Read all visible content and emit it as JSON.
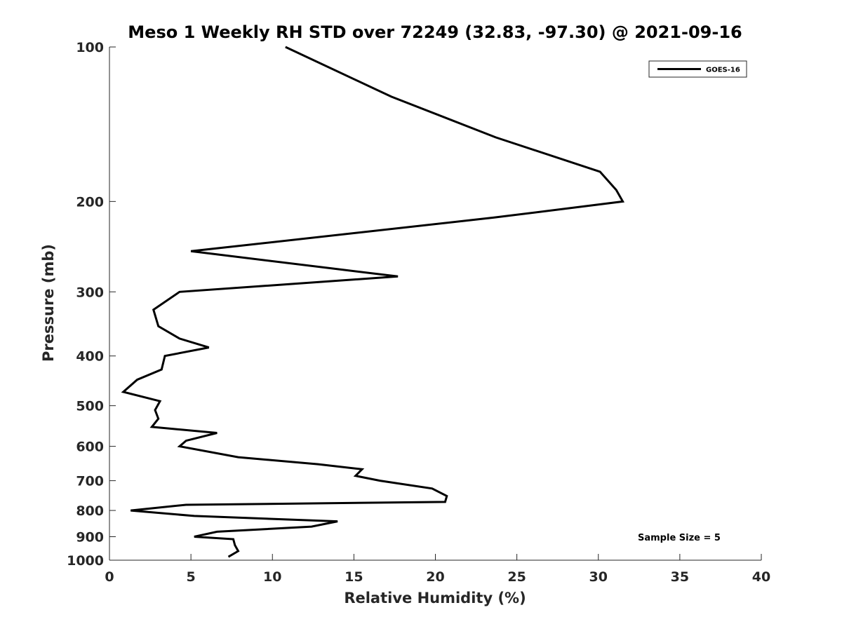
{
  "chart_data": {
    "type": "line",
    "title": "Meso 1 Weekly RH STD over 72249 (32.83, -97.30) @ 2021-09-16",
    "xlabel": "Relative Humidity (%)",
    "ylabel": "Pressure (mb)",
    "xlim": [
      0,
      40
    ],
    "ylim": [
      100,
      1000
    ],
    "y_scale": "log",
    "y_reversed": true,
    "grid": false,
    "x_ticks": [
      0,
      5,
      10,
      15,
      20,
      25,
      30,
      35,
      40
    ],
    "y_ticks": [
      100,
      200,
      300,
      400,
      500,
      600,
      700,
      800,
      900,
      1000
    ],
    "legend_position": "top-right",
    "annotation": "Sample Size = 5",
    "series": [
      {
        "name": "GOES-16",
        "color": "#000000",
        "points": [
          [
            10.8,
            100
          ],
          [
            17.3,
            125
          ],
          [
            23.7,
            150
          ],
          [
            30.1,
            175
          ],
          [
            31.1,
            190
          ],
          [
            31.5,
            200
          ],
          [
            23.6,
            215
          ],
          [
            5.0,
            250
          ],
          [
            17.7,
            280
          ],
          [
            4.3,
            300
          ],
          [
            2.7,
            325
          ],
          [
            3.0,
            350
          ],
          [
            4.3,
            370
          ],
          [
            6.1,
            385
          ],
          [
            3.4,
            400
          ],
          [
            3.2,
            425
          ],
          [
            1.7,
            445
          ],
          [
            0.85,
            470
          ],
          [
            3.1,
            490
          ],
          [
            2.8,
            510
          ],
          [
            3.0,
            530
          ],
          [
            2.6,
            550
          ],
          [
            6.6,
            565
          ],
          [
            4.7,
            585
          ],
          [
            4.3,
            600
          ],
          [
            7.9,
            630
          ],
          [
            12.8,
            650
          ],
          [
            15.5,
            665
          ],
          [
            15.1,
            685
          ],
          [
            16.6,
            700
          ],
          [
            19.8,
            725
          ],
          [
            20.7,
            750
          ],
          [
            20.6,
            770
          ],
          [
            4.7,
            780
          ],
          [
            1.3,
            800
          ],
          [
            5.2,
            820
          ],
          [
            14.0,
            840
          ],
          [
            12.4,
            860
          ],
          [
            6.6,
            880
          ],
          [
            5.2,
            900
          ],
          [
            7.6,
            910
          ],
          [
            7.7,
            935
          ],
          [
            7.9,
            960
          ],
          [
            7.3,
            985
          ]
        ]
      }
    ]
  }
}
